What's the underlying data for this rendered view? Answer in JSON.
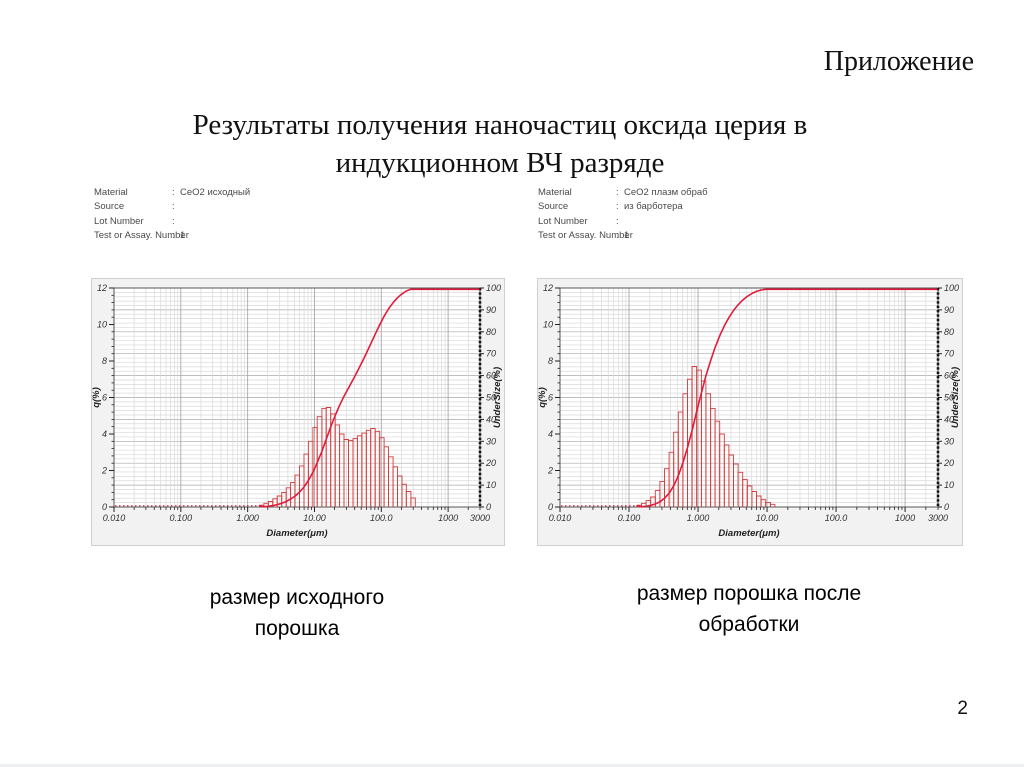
{
  "page": {
    "corner_label": "Приложение",
    "title_line1": "Результаты получения наночастиц оксида церия в",
    "title_line2": "индукционном ВЧ разряде",
    "page_number": "2"
  },
  "figures": [
    {
      "info_rows": [
        {
          "label": "Material",
          "value": "CeO2 исходный"
        },
        {
          "label": "Source",
          "value": ""
        },
        {
          "label": "Lot Number",
          "value": ""
        },
        {
          "label": "Test or Assay. Number",
          "value": "1"
        }
      ],
      "caption_line1": "размер исходного",
      "caption_line2": "порошка"
    },
    {
      "info_rows": [
        {
          "label": "Material",
          "value": "CeO2 плазм обраб"
        },
        {
          "label": "Source",
          "value": "из барботера"
        },
        {
          "label": "Lot Number",
          "value": ""
        },
        {
          "label": "Test or Assay. Number",
          "value": "1"
        }
      ],
      "caption_line1": "размер порошка после",
      "caption_line2": "обработки"
    }
  ],
  "chart_data": [
    {
      "type": "bar",
      "subtype": "particle-size-histogram-with-cumulative-curve",
      "title": "",
      "xlabel": "Diameter(μm)",
      "ylabel_left": "q(%)",
      "ylabel_right": "UnderSize(%)",
      "x_scale": "log",
      "x_range": [
        0.01,
        3000
      ],
      "x_tick_values": [
        0.01,
        0.1,
        1,
        10,
        100,
        1000,
        3000
      ],
      "x_tick_labels": [
        "0.010",
        "0.100",
        "1.000",
        "10.00",
        "100.0",
        "1000",
        "3000"
      ],
      "y_left_range": [
        0,
        12
      ],
      "y_left_label_step": 2,
      "y_left_minor_step": 0.4,
      "y_right_range": [
        0,
        100
      ],
      "y_right_label_step": 10,
      "y_right_minor_step": 2,
      "grid": true,
      "legend": "none",
      "bar_color": "#d43c3c",
      "curve_color": "#e11b3c",
      "bin_edges": [
        1.5,
        1.75,
        2.04,
        2.38,
        2.77,
        3.23,
        3.77,
        4.39,
        5.12,
        5.97,
        6.96,
        8.11,
        9.46,
        11.0,
        12.9,
        15.0,
        17.5,
        20.4,
        23.8,
        27.7,
        32.3,
        37.7,
        43.9,
        51.2,
        59.7,
        69.5,
        81.1,
        94.5,
        110,
        128,
        150,
        175,
        204,
        237,
        277,
        323
      ],
      "q_values": [
        0.1,
        0.2,
        0.3,
        0.45,
        0.6,
        0.8,
        1.05,
        1.35,
        1.75,
        2.25,
        2.9,
        3.6,
        4.35,
        4.95,
        5.4,
        5.45,
        5.1,
        4.5,
        4.0,
        3.7,
        3.65,
        3.75,
        3.9,
        4.05,
        4.2,
        4.3,
        4.15,
        3.8,
        3.3,
        2.75,
        2.2,
        1.7,
        1.25,
        0.85,
        0.5
      ],
      "cumulative": "normalized-cumsum-of-q-reaching-100"
    },
    {
      "type": "bar",
      "subtype": "particle-size-histogram-with-cumulative-curve",
      "title": "",
      "xlabel": "Diameter(μm)",
      "ylabel_left": "q(%)",
      "ylabel_right": "UnderSize(%)",
      "x_scale": "log",
      "x_range": [
        0.01,
        3000
      ],
      "x_tick_values": [
        0.01,
        0.1,
        1,
        10,
        100,
        1000,
        3000
      ],
      "x_tick_labels": [
        "0.010",
        "0.100",
        "1.000",
        "10.00",
        "100.0",
        "1000",
        "3000"
      ],
      "y_left_range": [
        0,
        12
      ],
      "y_left_label_step": 2,
      "y_left_minor_step": 0.4,
      "y_right_range": [
        0,
        100
      ],
      "y_right_label_step": 10,
      "y_right_minor_step": 2,
      "grid": true,
      "legend": "none",
      "bar_color": "#d43c3c",
      "curve_color": "#e11b3c",
      "bin_edges": [
        0.13,
        0.152,
        0.177,
        0.206,
        0.24,
        0.28,
        0.327,
        0.381,
        0.444,
        0.518,
        0.604,
        0.704,
        0.821,
        0.957,
        1.12,
        1.3,
        1.52,
        1.77,
        2.06,
        2.4,
        2.8,
        3.27,
        3.81,
        4.44,
        5.18,
        6.04,
        7.04,
        8.21,
        9.57,
        11.2,
        13.0
      ],
      "q_values": [
        0.1,
        0.2,
        0.35,
        0.55,
        0.9,
        1.4,
        2.1,
        3.0,
        4.1,
        5.2,
        6.2,
        7.0,
        7.7,
        7.5,
        6.9,
        6.2,
        5.4,
        4.7,
        4.0,
        3.4,
        2.85,
        2.35,
        1.9,
        1.5,
        1.15,
        0.85,
        0.6,
        0.4,
        0.25,
        0.15
      ],
      "cumulative": "normalized-cumsum-of-q-reaching-100"
    }
  ]
}
